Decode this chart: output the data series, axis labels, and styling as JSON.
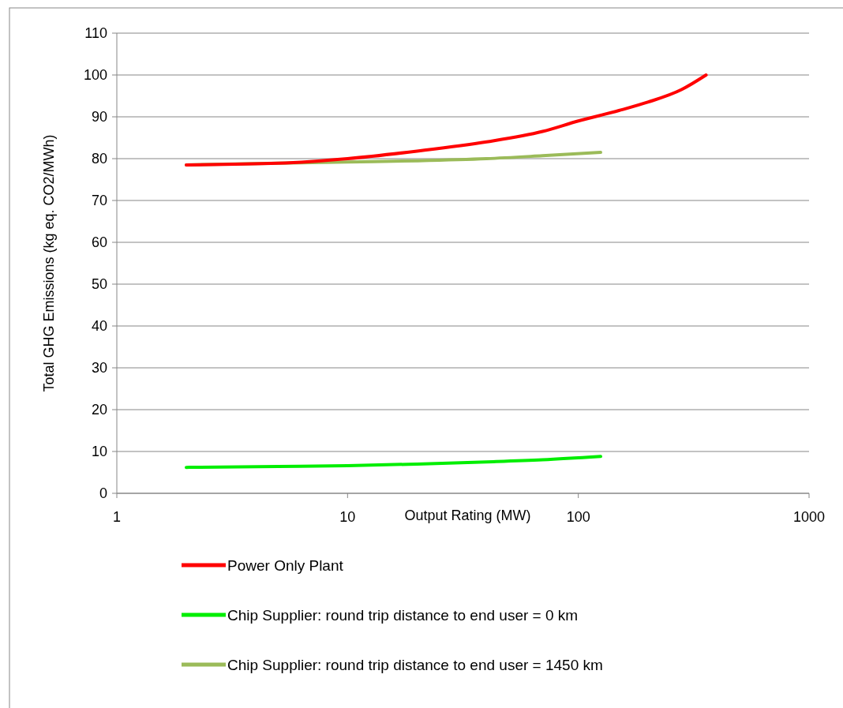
{
  "chart_data": {
    "type": "line",
    "xlabel": "Output Rating (MW)",
    "ylabel": "Total GHG Emissions  (kg eq. CO2/MWh)",
    "log": "x",
    "xlim": [
      1,
      1000
    ],
    "xticks": [
      1,
      10,
      100,
      1000
    ],
    "ylim": [
      0,
      110
    ],
    "yticks": [
      0,
      10,
      20,
      30,
      40,
      50,
      60,
      70,
      80,
      90,
      100,
      110
    ],
    "grid": "y",
    "legend": "bottom",
    "marker": "none",
    "line_style": "solid",
    "series": [
      {
        "name": "Power Only Plant",
        "color": "#ff0000",
        "x": [
          2,
          5,
          10,
          20,
          40,
          70,
          100,
          150,
          200,
          280,
          358
        ],
        "values": [
          78.5,
          78.9,
          80,
          81.8,
          84,
          86.5,
          89,
          91.5,
          93.5,
          96.5,
          100
        ]
      },
      {
        "name": "Chip Supplier: round trip distance to end user = 0 km",
        "color": "#00ee00",
        "x": [
          2,
          5,
          10,
          20,
          40,
          70,
          125
        ],
        "values": [
          6.2,
          6.4,
          6.6,
          7,
          7.5,
          8,
          8.8
        ]
      },
      {
        "name": "Chip Supplier: round trip distance to end user = 1450 km",
        "color": "#9bbb59",
        "x": [
          2,
          5,
          10,
          20,
          40,
          70,
          125
        ],
        "values": [
          78.5,
          78.9,
          79.2,
          79.5,
          80,
          80.7,
          81.5
        ]
      }
    ]
  }
}
